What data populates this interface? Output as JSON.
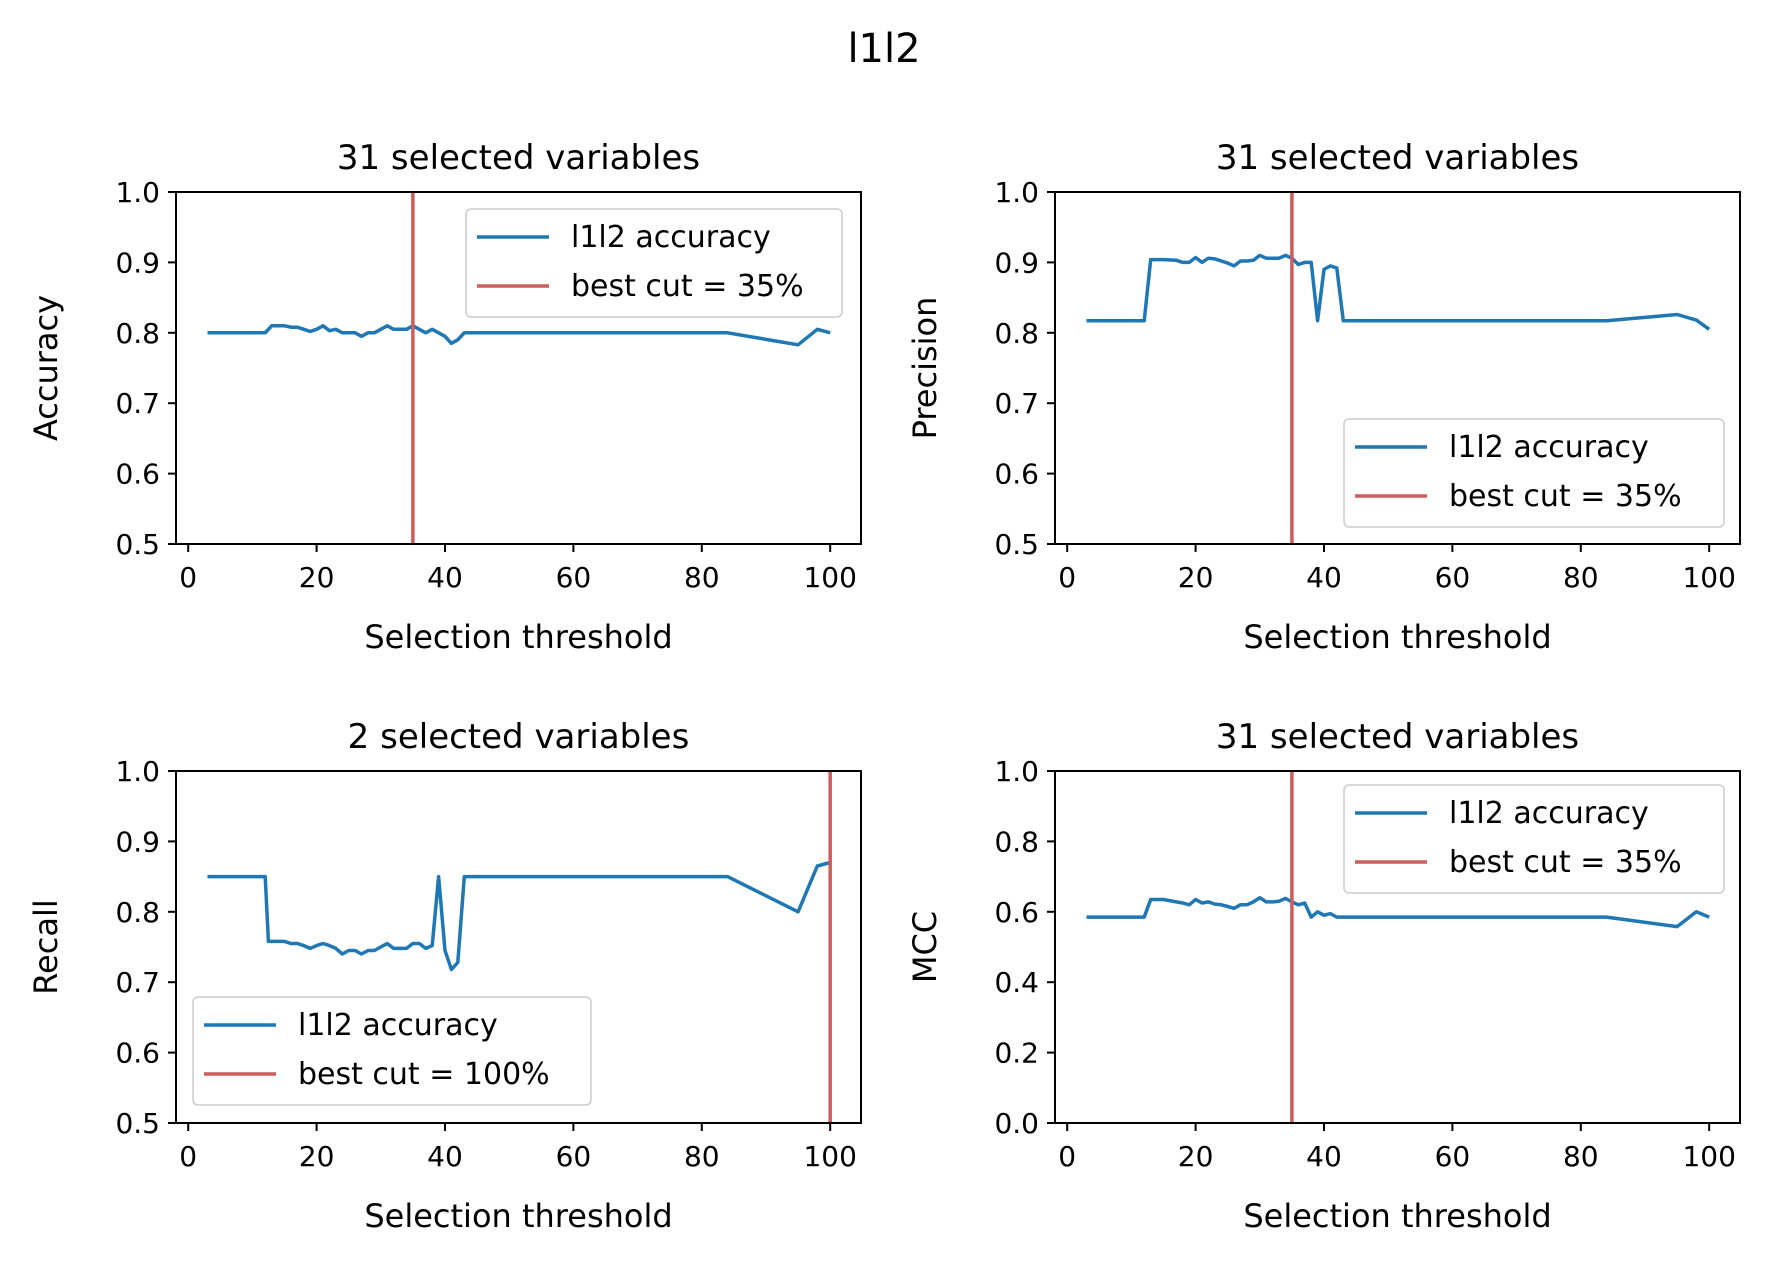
{
  "figure": {
    "title": "l1l2"
  },
  "colors": {
    "series": "#1f77b4",
    "best_cut": "#cd5c5c",
    "legend_edge": "#cccccc"
  },
  "chart_data": [
    {
      "type": "line",
      "title": "31 selected variables",
      "xlabel": "Selection threshold",
      "ylabel": "Accuracy",
      "xlim": [
        -1.9,
        104.8
      ],
      "ylim": [
        0.5,
        1.0
      ],
      "xticks": [
        0,
        20,
        40,
        60,
        80,
        100
      ],
      "yticks": [
        0.5,
        0.6,
        0.7,
        0.8,
        0.9,
        1.0
      ],
      "ytick_labels": [
        "0.5",
        "0.6",
        "0.7",
        "0.8",
        "0.9",
        "1.0"
      ],
      "legend_position": "upper right",
      "series": [
        {
          "name": "l1l2 accuracy",
          "x": [
            3,
            12,
            13,
            15,
            16,
            17,
            18,
            19,
            20,
            21,
            22,
            23,
            24,
            25,
            26,
            27,
            28,
            29,
            30,
            31,
            32,
            33,
            34,
            35,
            36,
            37,
            38,
            39,
            40,
            41,
            42,
            43,
            84,
            95,
            98,
            100
          ],
          "y": [
            0.8,
            0.8,
            0.81,
            0.81,
            0.808,
            0.808,
            0.805,
            0.802,
            0.805,
            0.81,
            0.803,
            0.805,
            0.8,
            0.8,
            0.8,
            0.795,
            0.8,
            0.8,
            0.805,
            0.81,
            0.805,
            0.805,
            0.805,
            0.81,
            0.805,
            0.8,
            0.805,
            0.8,
            0.795,
            0.785,
            0.79,
            0.8,
            0.8,
            0.783,
            0.805,
            0.8
          ]
        }
      ],
      "best_cut": {
        "name": "best cut = 35%",
        "x": 35
      }
    },
    {
      "type": "line",
      "title": "31 selected variables",
      "xlabel": "Selection threshold",
      "ylabel": "Precision",
      "xlim": [
        -1.9,
        104.8
      ],
      "ylim": [
        0.5,
        1.0
      ],
      "xticks": [
        0,
        20,
        40,
        60,
        80,
        100
      ],
      "yticks": [
        0.5,
        0.6,
        0.7,
        0.8,
        0.9,
        1.0
      ],
      "ytick_labels": [
        "0.5",
        "0.6",
        "0.7",
        "0.8",
        "0.9",
        "1.0"
      ],
      "legend_position": "lower right",
      "series": [
        {
          "name": "l1l2 accuracy",
          "x": [
            3,
            12,
            13,
            15,
            17,
            18,
            19,
            20,
            21,
            22,
            23,
            24,
            25,
            26,
            27,
            28,
            29,
            30,
            31,
            32,
            33,
            34,
            35,
            36,
            37,
            38,
            39,
            40,
            41,
            42,
            43,
            84,
            95,
            98,
            100
          ],
          "y": [
            0.817,
            0.817,
            0.904,
            0.904,
            0.903,
            0.9,
            0.9,
            0.907,
            0.9,
            0.906,
            0.905,
            0.902,
            0.899,
            0.895,
            0.902,
            0.902,
            0.903,
            0.91,
            0.906,
            0.906,
            0.906,
            0.91,
            0.906,
            0.897,
            0.9,
            0.9,
            0.817,
            0.89,
            0.895,
            0.892,
            0.817,
            0.817,
            0.826,
            0.818,
            0.805
          ]
        }
      ],
      "best_cut": {
        "name": "best cut = 35%",
        "x": 35
      }
    },
    {
      "type": "line",
      "title": "2 selected variables",
      "xlabel": "Selection threshold",
      "ylabel": "Recall",
      "xlim": [
        -1.9,
        104.8
      ],
      "ylim": [
        0.5,
        1.0
      ],
      "xticks": [
        0,
        20,
        40,
        60,
        80,
        100
      ],
      "yticks": [
        0.5,
        0.6,
        0.7,
        0.8,
        0.9,
        1.0
      ],
      "ytick_labels": [
        "0.5",
        "0.6",
        "0.7",
        "0.8",
        "0.9",
        "1.0"
      ],
      "legend_position": "lower left",
      "series": [
        {
          "name": "l1l2 accuracy",
          "x": [
            3,
            12,
            12.5,
            15,
            16,
            17,
            18,
            19,
            20,
            21,
            22,
            23,
            24,
            25,
            26,
            27,
            28,
            29,
            30,
            31,
            32,
            33,
            34,
            35,
            36,
            37,
            38,
            39,
            40,
            41,
            42,
            43,
            84,
            95,
            98,
            100
          ],
          "y": [
            0.85,
            0.85,
            0.758,
            0.758,
            0.755,
            0.755,
            0.752,
            0.748,
            0.752,
            0.755,
            0.752,
            0.748,
            0.74,
            0.745,
            0.745,
            0.74,
            0.745,
            0.745,
            0.75,
            0.755,
            0.748,
            0.748,
            0.748,
            0.755,
            0.755,
            0.748,
            0.752,
            0.85,
            0.745,
            0.718,
            0.728,
            0.85,
            0.85,
            0.8,
            0.865,
            0.87
          ]
        }
      ],
      "best_cut": {
        "name": "best cut = 100%",
        "x": 100
      }
    },
    {
      "type": "line",
      "title": "31 selected variables",
      "xlabel": "Selection threshold",
      "ylabel": "MCC",
      "xlim": [
        -1.9,
        104.8
      ],
      "ylim": [
        0.0,
        1.0
      ],
      "xticks": [
        0,
        20,
        40,
        60,
        80,
        100
      ],
      "yticks": [
        0.0,
        0.2,
        0.4,
        0.6,
        0.8,
        1.0
      ],
      "ytick_labels": [
        "0.0",
        "0.2",
        "0.4",
        "0.6",
        "0.8",
        "1.0"
      ],
      "legend_position": "upper right",
      "series": [
        {
          "name": "l1l2 accuracy",
          "x": [
            3,
            12,
            13,
            15,
            17,
            18,
            19,
            20,
            21,
            22,
            23,
            24,
            25,
            26,
            27,
            28,
            29,
            30,
            31,
            32,
            33,
            34,
            35,
            36,
            37,
            38,
            39,
            40,
            41,
            42,
            43,
            84,
            95,
            98,
            100
          ],
          "y": [
            0.585,
            0.585,
            0.635,
            0.635,
            0.628,
            0.625,
            0.62,
            0.635,
            0.625,
            0.628,
            0.622,
            0.62,
            0.615,
            0.61,
            0.62,
            0.62,
            0.628,
            0.64,
            0.628,
            0.628,
            0.63,
            0.638,
            0.628,
            0.62,
            0.625,
            0.585,
            0.6,
            0.59,
            0.595,
            0.585,
            0.585,
            0.585,
            0.558,
            0.6,
            0.585
          ]
        }
      ],
      "best_cut": {
        "name": "best cut = 35%",
        "x": 35
      }
    }
  ]
}
